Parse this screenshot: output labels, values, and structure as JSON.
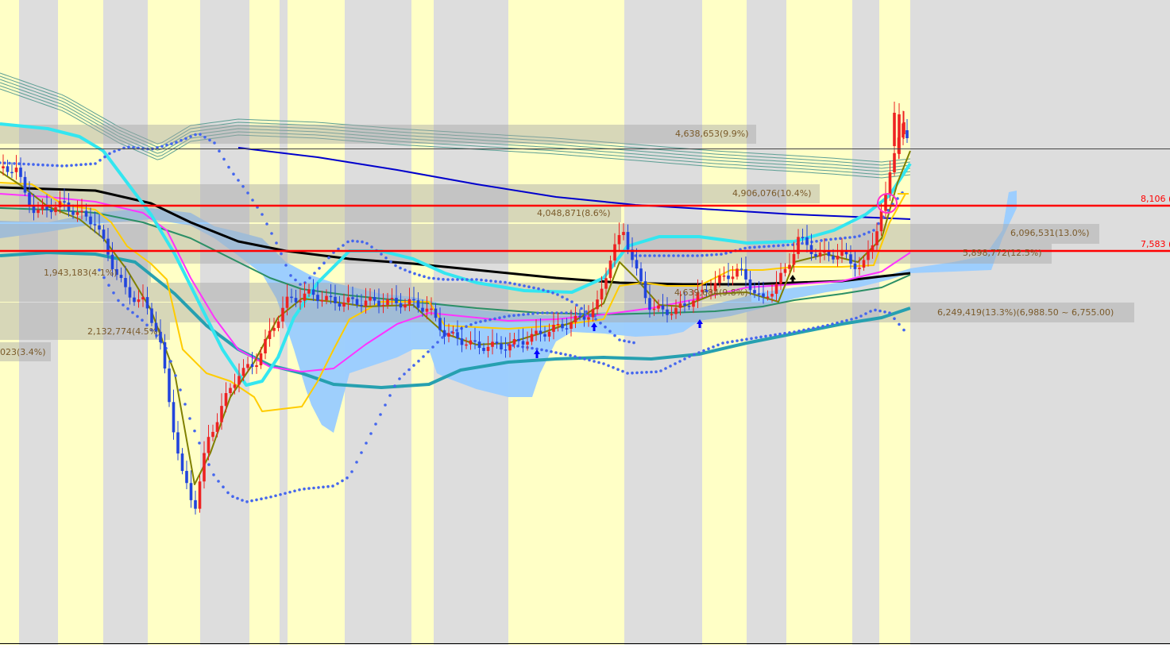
{
  "chart_data": {
    "type": "line",
    "title": "",
    "xlabel": "",
    "ylabel": "",
    "price_levels": [
      {
        "label": "8,106 (",
        "value": 8106,
        "color": "#ff0000"
      },
      {
        "label": "7,583 (",
        "value": 7583,
        "color": "#ff0000"
      }
    ],
    "volume_profile": [
      {
        "label": "4,638,653(9.9%)"
      },
      {
        "label": "4,906,076(10.4%)"
      },
      {
        "label": "4,048,871(8.6%)"
      },
      {
        "label": "6,096,531(13.0%)"
      },
      {
        "label": "5,898,772(12.5%)"
      },
      {
        "label": "1,943,183(4.1%)"
      },
      {
        "label": "4,639,684(9.8%)"
      },
      {
        "label": "6,249,419(13.3%)(6,988.50 ~ 6,755.00)"
      },
      {
        "label": "2,132,774(4.5%)"
      },
      {
        "label": "023(3.4%)"
      }
    ],
    "band_colors": {
      "light": "#ffffc6",
      "gray": "#dddddd"
    },
    "series_colors": {
      "ma_black": "#000000",
      "ma_blue": "#0000cc",
      "ma_cyan": "#33e6f0",
      "ma_teal": "#26a0b0",
      "ma_green": "#2b8f66",
      "ma_magenta": "#ff33ff",
      "ma_orange": "#ffcc00",
      "ma_olive": "#808000",
      "parabolic_dots": "#4466ee",
      "cloud": "#99ccff",
      "candle_up": "#ee2222",
      "candle_down": "#2244dd",
      "envelope": "#5c9e94"
    },
    "markers": [
      {
        "type": "buy-arrow",
        "color": "#0000ff"
      },
      {
        "type": "buy-arrow",
        "color": "#0000ff"
      },
      {
        "type": "buy-arrow",
        "color": "#0000ff"
      },
      {
        "type": "buy-arrow",
        "color": "#000000"
      },
      {
        "type": "highlight-circle",
        "color": "#ff33cc"
      }
    ]
  }
}
